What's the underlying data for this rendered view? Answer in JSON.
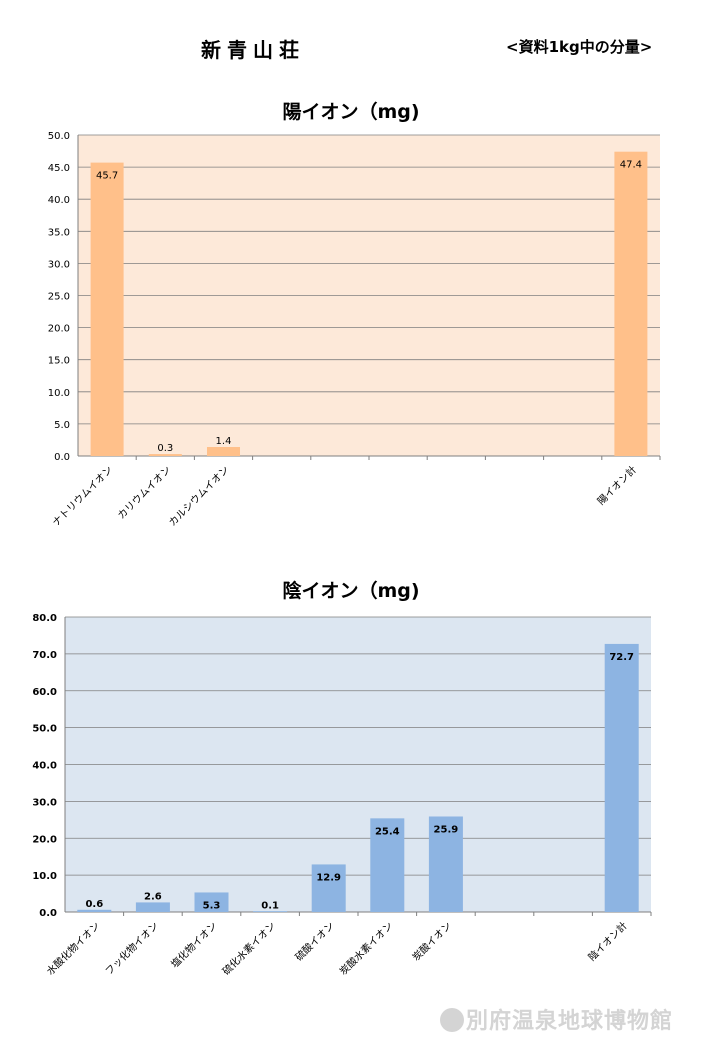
{
  "header": {
    "title": "新青山荘",
    "note": "<資料1kg中の分量>"
  },
  "chart_data": [
    {
      "type": "bar",
      "title": "陽イオン（mg)",
      "categories": [
        "ナトリウムイオン",
        "カリウムイオン",
        "カルシウムイオン",
        "",
        "",
        "",
        "",
        "",
        "",
        "陽イオン計"
      ],
      "values": [
        45.7,
        0.3,
        1.4,
        null,
        null,
        null,
        null,
        null,
        null,
        47.4
      ],
      "ylim": [
        0,
        50
      ],
      "yticks": [
        "0.0",
        "5.0",
        "10.0",
        "15.0",
        "20.0",
        "25.0",
        "30.0",
        "35.0",
        "40.0",
        "45.0",
        "50.0"
      ],
      "grid": true,
      "colors": {
        "bar": "#FFC08A",
        "plot_bg": "#FDE9D9",
        "grid": "#7f7f7f"
      }
    },
    {
      "type": "bar",
      "title": "陰イオン（mg)",
      "categories": [
        "水酸化物イオン",
        "フッ化物イオン",
        "塩化物イオン",
        "硫化水素イオン",
        "硫酸イオン",
        "炭酸水素イオン",
        "炭酸イオン",
        "",
        "",
        "陰イオン計"
      ],
      "values": [
        0.6,
        2.6,
        5.3,
        0.1,
        12.9,
        25.4,
        25.9,
        null,
        null,
        72.7
      ],
      "ylim": [
        0,
        80
      ],
      "yticks": [
        "0.0",
        "10.0",
        "20.0",
        "30.0",
        "40.0",
        "50.0",
        "60.0",
        "70.0",
        "80.0"
      ],
      "grid": true,
      "colors": {
        "bar": "#8DB4E2",
        "plot_bg": "#DCE6F1",
        "grid": "#7f7f7f"
      }
    }
  ],
  "watermark": "別府温泉地球博物館"
}
